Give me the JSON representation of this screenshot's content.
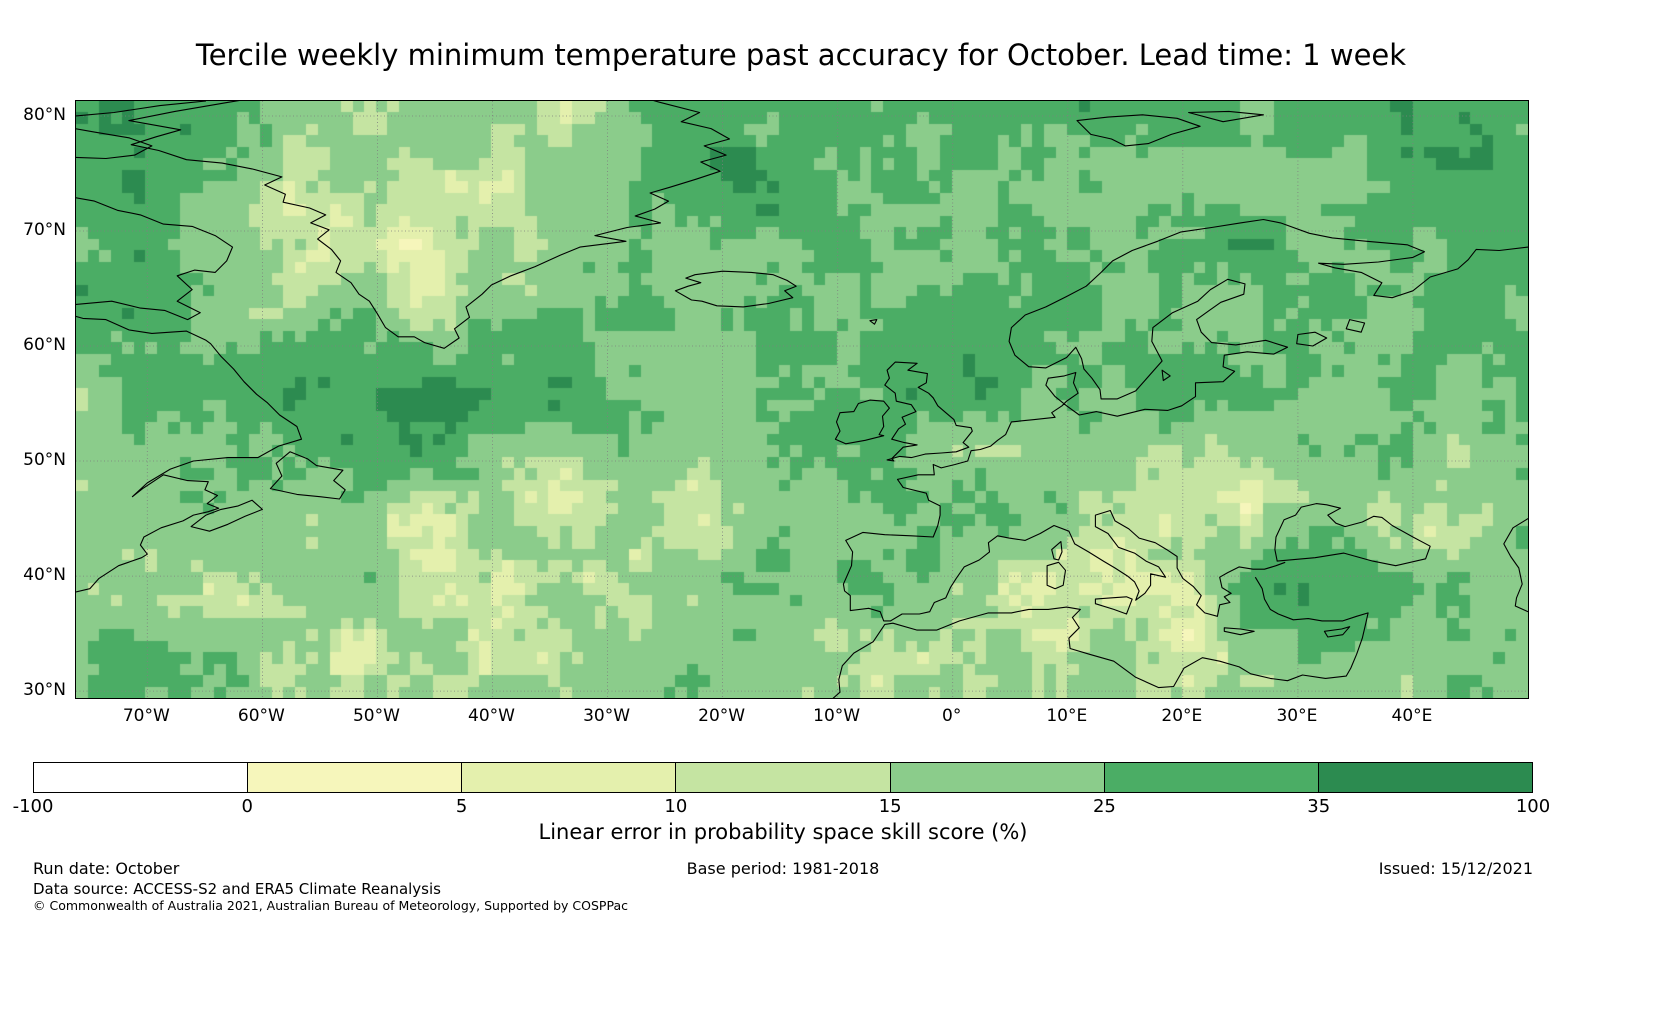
{
  "title": "Tercile weekly minimum temperature past accuracy for October. Lead time: 1 week",
  "footer": {
    "run_date": "Run date: October",
    "base_period": "Base period: 1981-2018",
    "issued": "Issued: 15/12/2021",
    "data_source": "Data source: ACCESS-S2 and ERA5 Climate Reanalysis",
    "copyright": "© Commonwealth of Australia 2021, Australian Bureau of Meteorology, Supported by COSPPac"
  },
  "chart_data": {
    "type": "heatmap",
    "title": "Tercile weekly minimum temperature past accuracy for October. Lead time: 1 week",
    "units": "%",
    "region": "North Atlantic, Greenland, Europe, North Africa",
    "lon_range": [
      -76.2,
      50.0
    ],
    "lat_range": [
      29.4,
      81.3
    ],
    "cell_size_deg": 1.0,
    "grid": true,
    "x_ticks": [
      {
        "value": -70,
        "label": "70°W"
      },
      {
        "value": -60,
        "label": "60°W"
      },
      {
        "value": -50,
        "label": "50°W"
      },
      {
        "value": -40,
        "label": "40°W"
      },
      {
        "value": -30,
        "label": "30°W"
      },
      {
        "value": -20,
        "label": "20°W"
      },
      {
        "value": -10,
        "label": "10°W"
      },
      {
        "value": 0,
        "label": "0°"
      },
      {
        "value": 10,
        "label": "10°E"
      },
      {
        "value": 20,
        "label": "20°E"
      },
      {
        "value": 30,
        "label": "30°E"
      },
      {
        "value": 40,
        "label": "40°E"
      }
    ],
    "y_ticks": [
      {
        "value": 80,
        "label": "80°N"
      },
      {
        "value": 70,
        "label": "70°N"
      },
      {
        "value": 60,
        "label": "60°N"
      },
      {
        "value": 50,
        "label": "50°N"
      },
      {
        "value": 40,
        "label": "40°N"
      },
      {
        "value": 30,
        "label": "30°N"
      }
    ],
    "colorbar": {
      "label": "Linear error in probability space skill score (%)",
      "orientation": "horizontal",
      "levels": [
        -100,
        0,
        5,
        10,
        15,
        25,
        35,
        100
      ],
      "tick_labels": [
        "-100",
        "0",
        "5",
        "10",
        "15",
        "25",
        "35",
        "100"
      ],
      "colors": [
        "#ffffff",
        "#f6f6bb",
        "#e4f0ad",
        "#c5e4a2",
        "#8bcc8b",
        "#4bad65",
        "#2c8b50"
      ]
    },
    "coarse_field": {
      "description": "Approximate skill score (%) read from the map on a coarse lon/lat grid (rows north to south); the plotted 1° field is this pattern with cell-scale variability. Dark (>35) patches: NW corner, sea NE of Greenland, Atlantic south of Greenland, S Turkey; light (<15) areas: Greenland interior, central mid-latitude Atlantic, Iberia/W Mediterranean, Black Sea region.",
      "lons": [
        -76.2,
        -66.5,
        -56.8,
        -47.1,
        -37.4,
        -27.7,
        -18.0,
        -8.3,
        1.4,
        11.1,
        20.8,
        30.5,
        40.2,
        50.0
      ],
      "lats": [
        81.3,
        72.65,
        64.0,
        55.35,
        46.7,
        38.05,
        29.4
      ],
      "values": [
        [
          40,
          30,
          20,
          14,
          16,
          22,
          30,
          26,
          24,
          26,
          24,
          26,
          33,
          28
        ],
        [
          32,
          24,
          14,
          10,
          13,
          20,
          34,
          28,
          25,
          27,
          25,
          27,
          30,
          30
        ],
        [
          26,
          24,
          18,
          12,
          15,
          20,
          22,
          26,
          28,
          30,
          28,
          26,
          25,
          27
        ],
        [
          22,
          26,
          32,
          42,
          38,
          26,
          22,
          28,
          27,
          26,
          27,
          25,
          24,
          26
        ],
        [
          21,
          23,
          26,
          18,
          13,
          15,
          19,
          26,
          23,
          19,
          13,
          13,
          19,
          23
        ],
        [
          24,
          21,
          16,
          12,
          14,
          17,
          20,
          22,
          12,
          15,
          13,
          32,
          21,
          24
        ],
        [
          26,
          23,
          19,
          16,
          17,
          19,
          21,
          19,
          12,
          15,
          17,
          22,
          19,
          22
        ]
      ]
    }
  }
}
